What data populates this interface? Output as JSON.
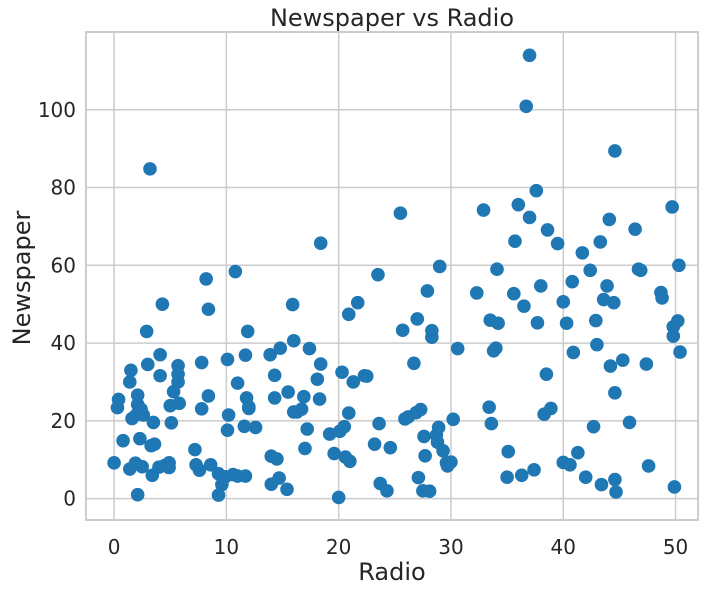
{
  "chart_data": {
    "type": "scatter",
    "title": "Newspaper vs Radio",
    "xlabel": "Radio",
    "ylabel": "Newspaper",
    "xlim": [
      -2.5,
      52
    ],
    "ylim": [
      -5.5,
      120
    ],
    "xticks": [
      0,
      10,
      20,
      30,
      40,
      50
    ],
    "yticks": [
      0,
      20,
      40,
      60,
      80,
      100
    ],
    "xtick_labels": [
      "0",
      "10",
      "20",
      "30",
      "40",
      "50"
    ],
    "ytick_labels": [
      "0",
      "20",
      "40",
      "60",
      "80",
      "100"
    ],
    "grid": true,
    "point_color": "#1f77b4",
    "series": [
      {
        "points": [
          [
            0.0,
            9.2
          ],
          [
            0.3,
            23.4
          ],
          [
            0.4,
            25.5
          ],
          [
            0.8,
            14.9
          ],
          [
            1.4,
            7.6
          ],
          [
            1.4,
            30.0
          ],
          [
            1.5,
            33.0
          ],
          [
            1.6,
            20.6
          ],
          [
            1.9,
            9.1
          ],
          [
            2.0,
            21.6
          ],
          [
            2.1,
            1.0
          ],
          [
            2.1,
            24.2
          ],
          [
            2.1,
            26.6
          ],
          [
            2.3,
            15.4
          ],
          [
            2.4,
            23.0
          ],
          [
            2.5,
            8.2
          ],
          [
            2.6,
            21.5
          ],
          [
            2.9,
            43.0
          ],
          [
            3.0,
            34.5
          ],
          [
            3.2,
            84.8
          ],
          [
            3.3,
            13.6
          ],
          [
            3.4,
            6.0
          ],
          [
            3.5,
            19.6
          ],
          [
            3.6,
            14.0
          ],
          [
            4.0,
            8.1
          ],
          [
            4.1,
            31.6
          ],
          [
            4.1,
            37.0
          ],
          [
            4.3,
            50.0
          ],
          [
            4.5,
            8.5
          ],
          [
            4.9,
            8.0
          ],
          [
            4.9,
            9.2
          ],
          [
            5.0,
            23.9
          ],
          [
            5.1,
            19.5
          ],
          [
            5.3,
            27.5
          ],
          [
            5.7,
            34.2
          ],
          [
            5.7,
            30.0
          ],
          [
            5.7,
            32.0
          ],
          [
            5.8,
            24.5
          ],
          [
            7.2,
            12.6
          ],
          [
            7.3,
            8.7
          ],
          [
            7.6,
            7.3
          ],
          [
            7.8,
            23.1
          ],
          [
            7.8,
            35.0
          ],
          [
            8.2,
            56.5
          ],
          [
            8.4,
            26.4
          ],
          [
            8.4,
            48.7
          ],
          [
            8.6,
            8.7
          ],
          [
            9.3,
            0.9
          ],
          [
            9.3,
            6.4
          ],
          [
            9.6,
            3.6
          ],
          [
            9.9,
            5.6
          ],
          [
            10.1,
            35.8
          ],
          [
            10.1,
            17.6
          ],
          [
            10.2,
            21.5
          ],
          [
            10.6,
            6.2
          ],
          [
            10.8,
            58.4
          ],
          [
            11.0,
            29.7
          ],
          [
            11.0,
            5.8
          ],
          [
            11.6,
            18.6
          ],
          [
            11.7,
            36.9
          ],
          [
            11.7,
            5.8
          ],
          [
            11.8,
            25.9
          ],
          [
            11.9,
            43.0
          ],
          [
            12.0,
            23.2
          ],
          [
            12.0,
            23.6
          ],
          [
            12.6,
            18.3
          ],
          [
            13.9,
            37.0
          ],
          [
            14.0,
            3.7
          ],
          [
            14.0,
            10.9
          ],
          [
            14.3,
            25.9
          ],
          [
            14.3,
            31.7
          ],
          [
            14.5,
            10.2
          ],
          [
            14.7,
            5.3
          ],
          [
            14.8,
            38.7
          ],
          [
            15.4,
            2.4
          ],
          [
            15.5,
            27.4
          ],
          [
            15.9,
            49.9
          ],
          [
            16.0,
            22.3
          ],
          [
            16.0,
            40.6
          ],
          [
            16.3,
            22.3
          ],
          [
            16.7,
            23.0
          ],
          [
            16.9,
            26.2
          ],
          [
            17.0,
            12.9
          ],
          [
            17.2,
            17.9
          ],
          [
            17.4,
            38.6
          ],
          [
            18.1,
            30.7
          ],
          [
            18.3,
            25.6
          ],
          [
            18.4,
            65.7
          ],
          [
            18.4,
            34.6
          ],
          [
            19.2,
            16.6
          ],
          [
            19.6,
            11.6
          ],
          [
            20.0,
            0.3
          ],
          [
            20.1,
            17.3
          ],
          [
            20.3,
            32.5
          ],
          [
            20.5,
            18.5
          ],
          [
            20.6,
            10.7
          ],
          [
            20.9,
            47.4
          ],
          [
            20.9,
            22.0
          ],
          [
            21.0,
            9.6
          ],
          [
            21.3,
            30.0
          ],
          [
            21.7,
            50.4
          ],
          [
            22.3,
            31.6
          ],
          [
            22.5,
            31.5
          ],
          [
            23.2,
            14.0
          ],
          [
            23.5,
            57.6
          ],
          [
            23.6,
            19.3
          ],
          [
            23.7,
            3.9
          ],
          [
            24.3,
            2.0
          ],
          [
            24.6,
            13.1
          ],
          [
            25.5,
            73.4
          ],
          [
            25.7,
            43.3
          ],
          [
            25.9,
            20.5
          ],
          [
            26.2,
            21.0
          ],
          [
            26.7,
            34.8
          ],
          [
            26.9,
            22.1
          ],
          [
            27.0,
            46.2
          ],
          [
            27.1,
            5.4
          ],
          [
            27.3,
            22.9
          ],
          [
            27.5,
            2.0
          ],
          [
            27.6,
            16.0
          ],
          [
            27.7,
            11.0
          ],
          [
            27.9,
            53.4
          ],
          [
            28.1,
            1.9
          ],
          [
            28.3,
            41.5
          ],
          [
            28.3,
            43.2
          ],
          [
            28.7,
            16.3
          ],
          [
            28.8,
            14.5
          ],
          [
            28.9,
            18.3
          ],
          [
            29.0,
            59.7
          ],
          [
            29.3,
            12.3
          ],
          [
            29.6,
            9.2
          ],
          [
            29.7,
            8.4
          ],
          [
            30.0,
            9.4
          ],
          [
            30.2,
            20.4
          ],
          [
            30.6,
            38.6
          ],
          [
            32.3,
            52.9
          ],
          [
            32.9,
            74.2
          ],
          [
            33.4,
            23.5
          ],
          [
            33.5,
            45.9
          ],
          [
            33.6,
            19.3
          ],
          [
            33.8,
            38.0
          ],
          [
            34.0,
            38.7
          ],
          [
            34.1,
            59.0
          ],
          [
            34.2,
            45.1
          ],
          [
            35.0,
            5.5
          ],
          [
            35.1,
            12.1
          ],
          [
            35.6,
            52.7
          ],
          [
            35.7,
            66.2
          ],
          [
            36.0,
            75.6
          ],
          [
            36.3,
            6.0
          ],
          [
            36.5,
            49.5
          ],
          [
            36.7,
            100.9
          ],
          [
            37.0,
            114.0
          ],
          [
            37.0,
            72.3
          ],
          [
            37.4,
            7.4
          ],
          [
            37.6,
            79.2
          ],
          [
            37.7,
            45.2
          ],
          [
            38.0,
            54.7
          ],
          [
            38.3,
            21.7
          ],
          [
            38.5,
            32.0
          ],
          [
            38.6,
            69.1
          ],
          [
            38.9,
            23.2
          ],
          [
            39.5,
            65.6
          ],
          [
            40.0,
            9.3
          ],
          [
            40.0,
            50.6
          ],
          [
            40.3,
            45.1
          ],
          [
            40.6,
            8.7
          ],
          [
            40.8,
            55.8
          ],
          [
            40.9,
            37.6
          ],
          [
            41.3,
            11.8
          ],
          [
            41.7,
            63.2
          ],
          [
            42.0,
            5.5
          ],
          [
            42.4,
            58.7
          ],
          [
            42.7,
            18.5
          ],
          [
            42.9,
            45.8
          ],
          [
            43.0,
            39.6
          ],
          [
            43.3,
            66.0
          ],
          [
            43.4,
            3.6
          ],
          [
            43.6,
            51.2
          ],
          [
            43.9,
            54.7
          ],
          [
            44.1,
            71.8
          ],
          [
            44.2,
            34.1
          ],
          [
            44.5,
            50.4
          ],
          [
            44.6,
            4.9
          ],
          [
            44.6,
            89.4
          ],
          [
            44.6,
            27.2
          ],
          [
            44.7,
            1.7
          ],
          [
            45.3,
            35.6
          ],
          [
            45.9,
            19.6
          ],
          [
            46.4,
            69.3
          ],
          [
            46.7,
            59.0
          ],
          [
            46.9,
            58.7
          ],
          [
            47.4,
            34.6
          ],
          [
            47.6,
            8.4
          ],
          [
            48.7,
            53.0
          ],
          [
            48.8,
            51.6
          ],
          [
            49.7,
            75.0
          ],
          [
            49.8,
            41.8
          ],
          [
            49.8,
            44.2
          ],
          [
            49.9,
            3.0
          ],
          [
            50.2,
            45.7
          ],
          [
            50.3,
            60.0
          ],
          [
            50.4,
            37.7
          ]
        ]
      }
    ]
  }
}
